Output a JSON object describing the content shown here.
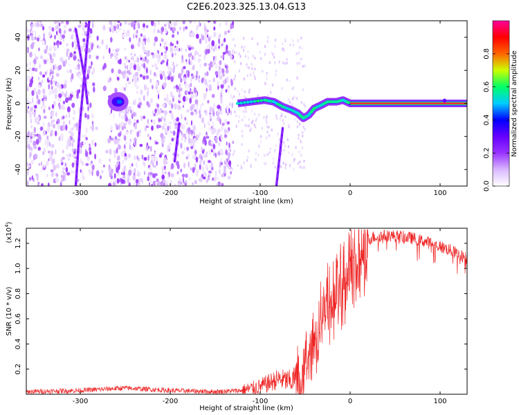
{
  "title": "C2E6.2023.325.13.04.G13",
  "chart_data": [
    {
      "type": "heatmap",
      "xlabel": "Height of straight line (km)",
      "ylabel": "Frequency (Hz)",
      "xlim": [
        -360,
        130
      ],
      "ylim": [
        -50,
        50
      ],
      "xticks": [
        -300,
        -200,
        -100,
        0,
        100
      ],
      "yticks": [
        -40,
        -20,
        0,
        20,
        40
      ],
      "colorbar": {
        "label": "Normalized spectral amplitude",
        "range": [
          0,
          1
        ],
        "ticks": [
          0.0,
          0.2,
          0.4,
          0.6,
          0.8
        ],
        "colors": [
          "#ffffff",
          "#d9b8ff",
          "#9933ff",
          "#6600ff",
          "#0000ff",
          "#00ccff",
          "#00ff66",
          "#ccff00",
          "#ff6600",
          "#ff0000",
          "#ff0099"
        ]
      },
      "features": {
        "noise_region": [
          -360,
          -130
        ],
        "carrier_trace": [
          [
            -125,
            0
          ],
          [
            -110,
            1
          ],
          [
            -95,
            2
          ],
          [
            -85,
            1
          ],
          [
            -75,
            -2
          ],
          [
            -65,
            -4
          ],
          [
            -58,
            -6
          ],
          [
            -52,
            -9
          ],
          [
            -46,
            -7
          ],
          [
            -40,
            -3
          ],
          [
            -32,
            -1
          ],
          [
            -25,
            1
          ],
          [
            -15,
            1
          ],
          [
            -8,
            2
          ],
          [
            0,
            0
          ],
          [
            130,
            0
          ]
        ],
        "blob_at": [
          -258,
          1
        ],
        "streaks": [
          [
            [
              -305,
              45
            ],
            [
              -300,
              30
            ],
            [
              -295,
              15
            ],
            [
              -292,
              0
            ]
          ],
          [
            [
              -290,
              50
            ],
            [
              -295,
              20
            ],
            [
              -300,
              -10
            ],
            [
              -305,
              -50
            ]
          ],
          [
            [
              -190,
              -12
            ],
            [
              -195,
              -35
            ]
          ],
          [
            [
              -75,
              -15
            ],
            [
              -82,
              -50
            ]
          ]
        ]
      }
    },
    {
      "type": "line",
      "xlabel": "Height of straight line (km)",
      "ylabel": "SNR (10 * v/v)",
      "yscale_label": "(x10",
      "yscale_exp": "4",
      "yscale_close": ")",
      "xlim": [
        -360,
        130
      ],
      "ylim": [
        0,
        1.32
      ],
      "xticks": [
        -300,
        -200,
        -100,
        0,
        100
      ],
      "yticks": [
        0.2,
        0.4,
        0.6,
        0.8,
        1.0,
        1.2
      ],
      "color": "#ee2222",
      "series": [
        {
          "x": [
            -360,
            -300,
            -250,
            -200,
            -150,
            -120,
            -100,
            -80,
            -65,
            -55,
            -45,
            -35,
            -25,
            -15,
            -5,
            5,
            15,
            25,
            35,
            50,
            70,
            90,
            110,
            130
          ],
          "y": [
            0.02,
            0.03,
            0.05,
            0.03,
            0.02,
            0.03,
            0.06,
            0.12,
            0.1,
            0.2,
            0.4,
            0.6,
            0.78,
            0.88,
            1.0,
            1.12,
            1.2,
            1.25,
            1.26,
            1.26,
            1.24,
            1.2,
            1.15,
            1.08
          ]
        }
      ]
    }
  ]
}
